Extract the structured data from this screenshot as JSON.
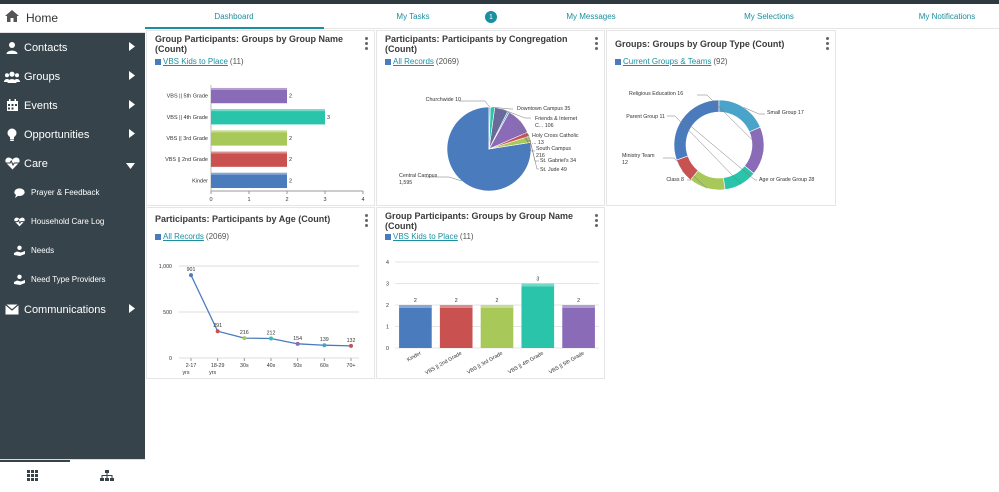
{
  "header": {
    "tabs": [
      {
        "label": "Dashboard"
      },
      {
        "label": "My Tasks"
      },
      {
        "label": "My Messages"
      },
      {
        "label": "My Selections"
      },
      {
        "label": "My Notifications"
      }
    ],
    "tasks_badge": "1"
  },
  "sidebar": {
    "home_label": "Home",
    "items": [
      {
        "label": "Contacts"
      },
      {
        "label": "Groups"
      },
      {
        "label": "Events"
      },
      {
        "label": "Opportunities"
      },
      {
        "label": "Care"
      },
      {
        "label": "Communications"
      }
    ],
    "care_sub": [
      {
        "label": "Prayer & Feedback"
      },
      {
        "label": "Household Care Log"
      },
      {
        "label": "Needs"
      },
      {
        "label": "Need Type Providers"
      }
    ]
  },
  "widgets": [
    {
      "title_line1": "Group Participants: Groups by Group Name",
      "title_line2": "(Count)",
      "link": "VBS Kids to Place",
      "count": "(11)"
    },
    {
      "title_line1": "Participants: Participants by Congregation",
      "title_line2": "(Count)",
      "link": "All Records",
      "count": "(2069)"
    },
    {
      "title_line1": "Groups: Groups by Group Type (Count)",
      "title_line2": "",
      "link": "Current Groups & Teams",
      "count": "(92)"
    },
    {
      "title_line1": "Participants: Participants by Age (Count)",
      "title_line2": "",
      "link": "All Records",
      "count": "(2069)"
    },
    {
      "title_line1": "Group Participants: Groups by Group Name",
      "title_line2": "(Count)",
      "link": "VBS Kids to Place",
      "count": "(11)"
    }
  ],
  "chart_data": [
    {
      "type": "bar",
      "orientation": "horizontal",
      "categories": [
        "VBS || 5th Grade",
        "VBS || 4th Grade",
        "VBS || 3rd Grade",
        "VBS || 2nd Grade",
        "Kinder"
      ],
      "values": [
        2,
        3,
        2,
        2,
        2
      ],
      "value_labels": [
        "2",
        "3",
        "2",
        "2",
        "2"
      ],
      "xlim": [
        0,
        4
      ],
      "xticks": [
        "0",
        "1",
        "2",
        "3",
        "4"
      ],
      "colors": [
        "#8a6bb8",
        "#29c4a9",
        "#a8c95a",
        "#c9514f",
        "#4a7bbd"
      ]
    },
    {
      "type": "pie",
      "slices": [
        {
          "label": "Central Campus",
          "value_label": "1,595",
          "value": 1595,
          "color": "#4a7bbd"
        },
        {
          "label": "St. Jude",
          "value_label": "49",
          "value": 49,
          "color": "#a8c95a"
        },
        {
          "label": "St. Gabriel's",
          "value_label": "34",
          "value": 34,
          "color": "#c9514f"
        },
        {
          "label": "South Campus",
          "value_label": "216",
          "value": 216,
          "color": "#8a6bb8"
        },
        {
          "label": "Holy Cross Catholic ...",
          "value_label": "13",
          "value": 13,
          "color": "#4aa3c9"
        },
        {
          "label": "Friends & Internet C...",
          "value_label": "106",
          "value": 106,
          "color": "#6a6a9a"
        },
        {
          "label": "Downtown Campus",
          "value_label": "35",
          "value": 35,
          "color": "#29c4a9"
        },
        {
          "label": "Churchwide",
          "value_label": "10",
          "value": 10,
          "color": "#e0a040"
        }
      ]
    },
    {
      "type": "pie",
      "donut": true,
      "slices": [
        {
          "label": "Age or Grade Group",
          "value_label": "28",
          "value": 28,
          "color": "#4a7bbd"
        },
        {
          "label": "Class",
          "value_label": "8",
          "value": 8,
          "color": "#c9514f"
        },
        {
          "label": "Ministry Team",
          "value_label": "12",
          "value": 12,
          "color": "#a8c95a"
        },
        {
          "label": "Parent Group",
          "value_label": "11",
          "value": 11,
          "color": "#29c4a9"
        },
        {
          "label": "Religious Education",
          "value_label": "16",
          "value": 16,
          "color": "#8a6bb8"
        },
        {
          "label": "Small Group",
          "value_label": "17",
          "value": 17,
          "color": "#4aa3c9"
        }
      ]
    },
    {
      "type": "line",
      "categories": [
        "2-17 yrs",
        "18-29 yrs",
        "30s",
        "40s",
        "50s",
        "60s",
        "70+"
      ],
      "values": [
        901,
        291,
        216,
        212,
        154,
        139,
        132
      ],
      "value_labels": [
        "901",
        "291",
        "216",
        "212",
        "154",
        "139",
        "132"
      ],
      "ylim": [
        0,
        1000
      ],
      "yticks": [
        "0",
        "500",
        "1,000"
      ],
      "point_colors": [
        "#4a7bbd",
        "#c9514f",
        "#a8c95a",
        "#29c4a9",
        "#8a6bb8",
        "#4aa3c9",
        "#c9514f"
      ]
    },
    {
      "type": "bar",
      "orientation": "vertical",
      "categories": [
        "Kinder",
        "VBS || 2nd Grade",
        "VBS || 3rd Grade",
        "VBS || 4th Grade",
        "VBS || 5th Grade"
      ],
      "values": [
        2,
        2,
        2,
        3,
        2
      ],
      "value_labels": [
        "2",
        "2",
        "2",
        "3",
        "2"
      ],
      "ylim": [
        0,
        4
      ],
      "yticks": [
        "0",
        "1",
        "2",
        "3",
        "4"
      ],
      "colors": [
        "#4a7bbd",
        "#c9514f",
        "#a8c95a",
        "#29c4a9",
        "#8a6bb8"
      ]
    }
  ]
}
